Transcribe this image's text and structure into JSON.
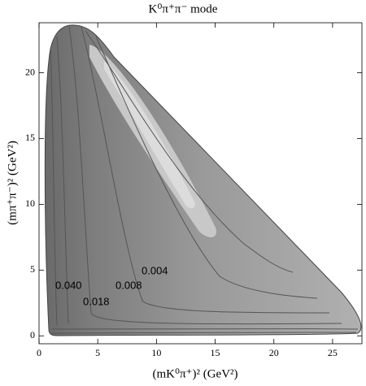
{
  "chart_data": {
    "type": "contour",
    "title": "K⁰π⁺π⁻ mode",
    "x_label": "(mK⁰π⁺)² (GeV²)",
    "y_label": "(mπ⁺π⁻)² (GeV²)",
    "xlim": [
      0,
      27.5
    ],
    "ylim": [
      -0.6,
      23.8
    ],
    "xticks": [
      0,
      5,
      10,
      15,
      20,
      25
    ],
    "yticks": [
      0,
      5,
      10,
      15,
      20
    ],
    "annotations": [
      "0.040",
      "0.018",
      "0.008",
      "0.004"
    ]
  }
}
